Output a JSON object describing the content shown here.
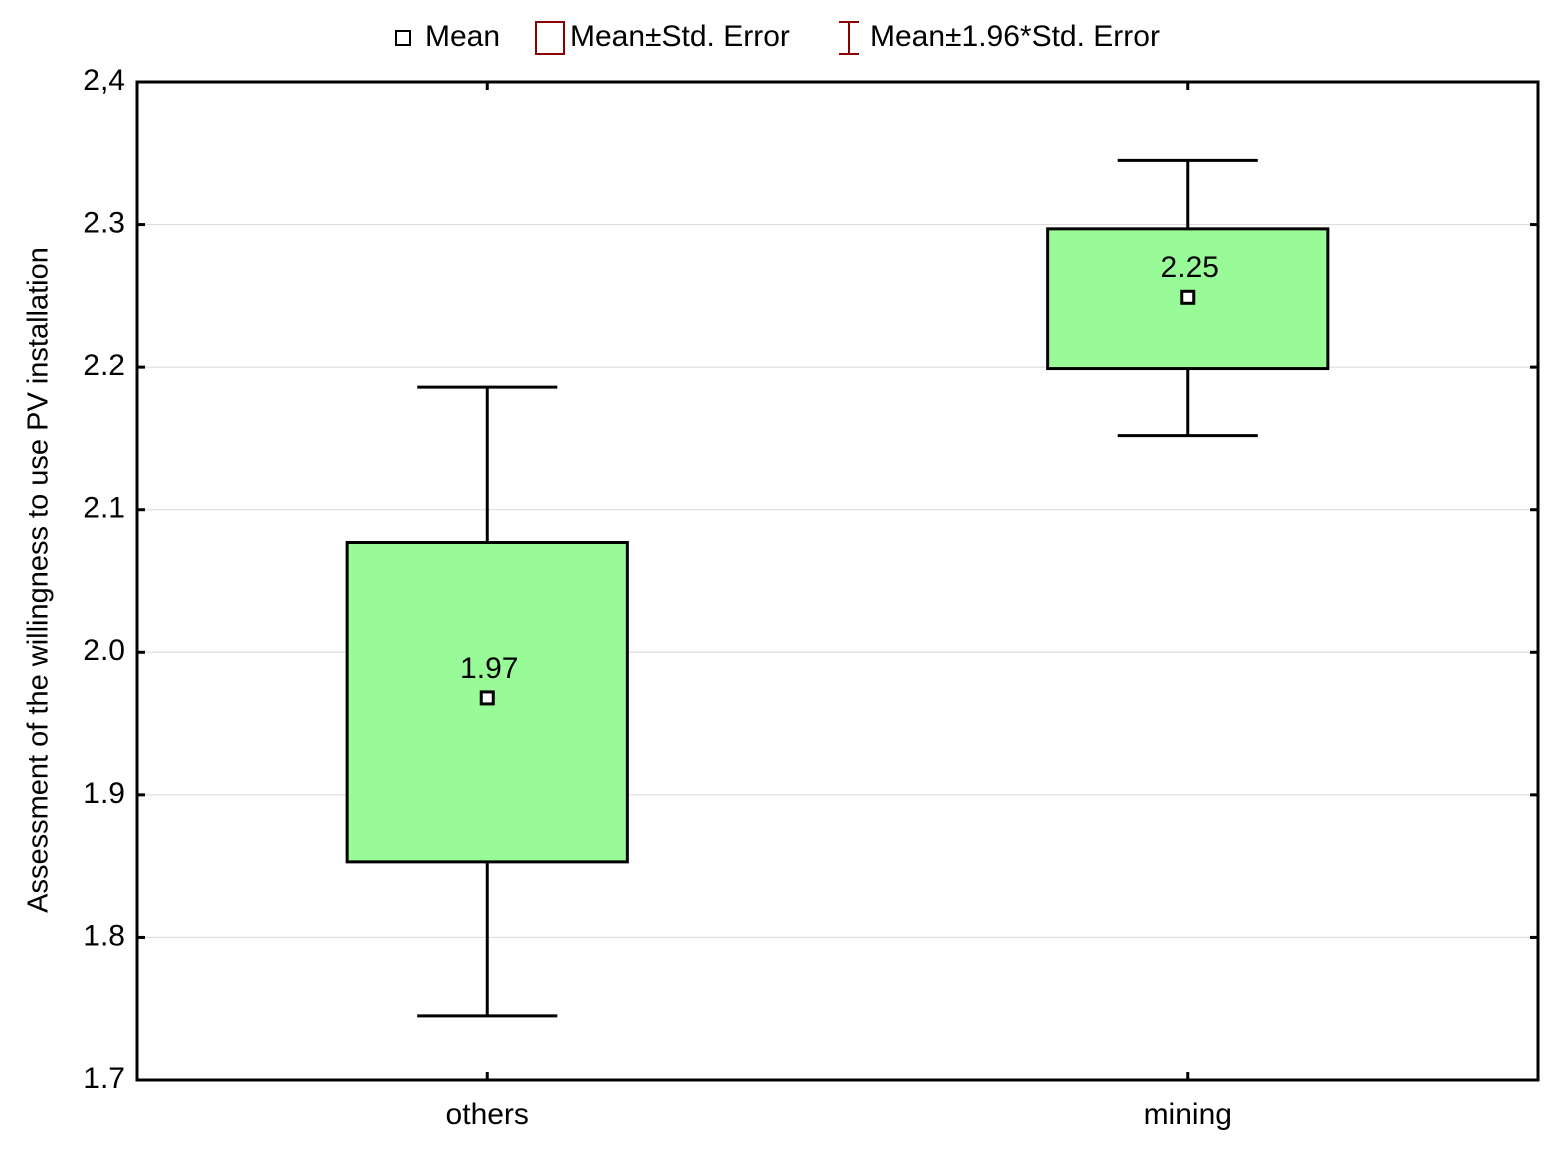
{
  "chart_data": {
    "type": "box",
    "y_label": "Assessment of the willingness to use PV installation",
    "categories": [
      "others",
      "mining"
    ],
    "series": [
      {
        "name": "Mean",
        "color": "#000000",
        "values": [
          1.968,
          2.249
        ],
        "value_labels": [
          "1.97",
          "2.25"
        ]
      },
      {
        "name": "Mean±Std. Error",
        "color": "#8b0000",
        "fill": "#98fb98",
        "low": [
          1.853,
          2.199
        ],
        "high": [
          2.077,
          2.297
        ]
      },
      {
        "name": "Mean±1.96*Std. Error",
        "color": "#8b0000",
        "low": [
          1.745,
          2.152
        ],
        "high": [
          2.186,
          2.345
        ]
      }
    ],
    "ylim": [
      1.7,
      2.4
    ],
    "yticks": [
      1.7,
      1.8,
      1.9,
      {
        "value": 2,
        "label": "2.0"
      },
      2.1,
      2.2,
      2.3,
      {
        "value": 2.4,
        "label": "2,4"
      }
    ],
    "grid": true,
    "legend": "top"
  }
}
